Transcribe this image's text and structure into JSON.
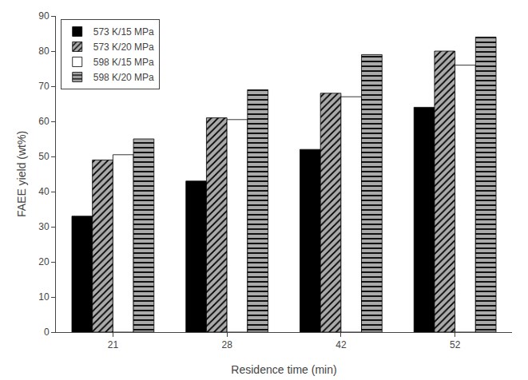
{
  "chart_data": {
    "type": "bar",
    "xlabel": "Residence time (min)",
    "ylabel": "FAEE yield (wt%)",
    "categories": [
      21,
      28,
      42,
      52
    ],
    "series": [
      {
        "name": "573 K/15 MPa",
        "color": "#000000",
        "values": [
          33,
          43,
          52,
          64
        ]
      },
      {
        "name": "573 K/20 MPa",
        "color": "#aaaaaa",
        "values": [
          49,
          61,
          68,
          80
        ]
      },
      {
        "name": "598 K/15 MPa",
        "color": "#ffffff",
        "values": [
          50.5,
          60.5,
          67,
          76
        ]
      },
      {
        "name": "598 K/20 MPa",
        "color": "#aaaaaa",
        "values": [
          55,
          69,
          79,
          84
        ]
      }
    ],
    "ylim": [
      0,
      90
    ],
    "yticks": [
      0,
      10,
      20,
      30,
      40,
      50,
      60,
      70,
      80,
      90
    ],
    "grid": false,
    "legend": "upper left"
  }
}
